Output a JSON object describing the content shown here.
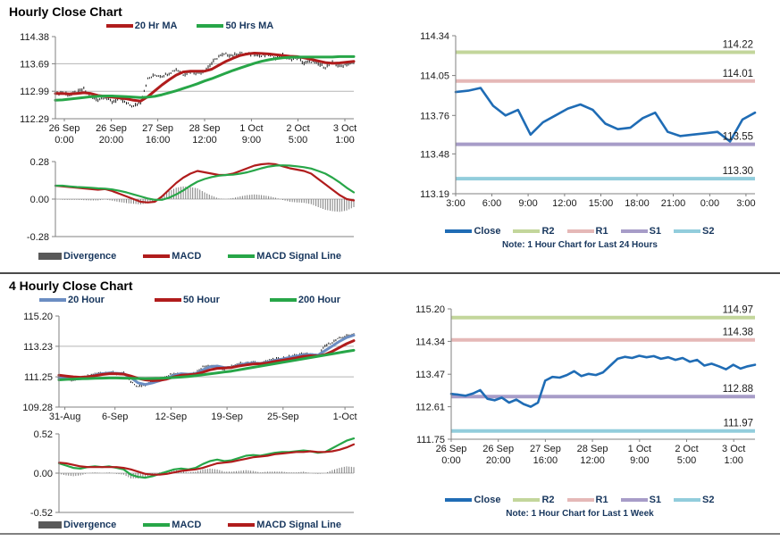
{
  "section1": {
    "title": "Hourly Close Chart",
    "price_legend": [
      {
        "label": "20 Hr MA",
        "color": "#b01c1c"
      },
      {
        "label": "50 Hrs MA",
        "color": "#27a648"
      }
    ],
    "macd_legend": [
      {
        "label": "Divergence",
        "color": "#595959"
      },
      {
        "label": "MACD",
        "color": "#b01c1c"
      },
      {
        "label": "MACD Signal Line",
        "color": "#27a648"
      }
    ],
    "pivot_legend": [
      {
        "label": "Close",
        "color": "#1f6cb5"
      },
      {
        "label": "R2",
        "color": "#c3d69b"
      },
      {
        "label": "R1",
        "color": "#e5b8b7"
      },
      {
        "label": "S1",
        "color": "#a79cc8"
      },
      {
        "label": "S2",
        "color": "#92cddc"
      }
    ],
    "note": "Note: 1 Hour Chart for Last 24 Hours"
  },
  "section2": {
    "title": "4 Hourly Close Chart",
    "price_legend": [
      {
        "label": "20 Hour",
        "color": "#6b8dc2"
      },
      {
        "label": "50 Hour",
        "color": "#b01c1c"
      },
      {
        "label": "200 Hour",
        "color": "#27a648"
      }
    ],
    "macd_legend": [
      {
        "label": "Divergence",
        "color": "#595959"
      },
      {
        "label": "MACD",
        "color": "#27a648"
      },
      {
        "label": "MACD Signal Line",
        "color": "#b01c1c"
      }
    ],
    "pivot_legend": [
      {
        "label": "Close",
        "color": "#1f6cb5"
      },
      {
        "label": "R2",
        "color": "#c3d69b"
      },
      {
        "label": "R1",
        "color": "#e5b8b7"
      },
      {
        "label": "S1",
        "color": "#a79cc8"
      },
      {
        "label": "S2",
        "color": "#92cddc"
      }
    ],
    "note": "Note: 1 Hour Chart for Last 1 Week"
  },
  "chart_data": [
    {
      "type": "line",
      "title": "Hourly Close Chart",
      "ylim": [
        112.29,
        114.38
      ],
      "yticks": [
        114.38,
        113.69,
        112.99,
        112.29
      ],
      "grid": [
        113.69,
        112.99
      ],
      "xticks": [
        "26 Sep\n0:00",
        "26 Sep\n20:00",
        "27 Sep\n16:00",
        "28 Sep\n12:00",
        "1 Oct\n9:00",
        "2 Oct\n5:00",
        "3 Oct\n1:00"
      ],
      "xtick_pos": [
        0.03,
        0.187,
        0.343,
        0.5,
        0.657,
        0.813,
        0.97
      ],
      "series": [
        {
          "name": "Close",
          "style": "hlc",
          "color": "#1a1a1a",
          "noise": 0.03,
          "bar": 0.05,
          "values": [
            112.93,
            112.95,
            112.9,
            112.96,
            113.05,
            112.82,
            112.78,
            112.85,
            112.72,
            112.8,
            112.68,
            112.6,
            112.72,
            113.3,
            113.4,
            113.38,
            113.45,
            113.55,
            113.42,
            113.48,
            113.45,
            113.52,
            113.7,
            113.88,
            113.93,
            113.9,
            113.96,
            113.92,
            113.95,
            113.88,
            113.92,
            113.85,
            113.9,
            113.8,
            113.85,
            113.7,
            113.75,
            113.68,
            113.6,
            113.72,
            113.62,
            113.68,
            113.72
          ]
        },
        {
          "name": "20 Hr MA",
          "style": "line",
          "color": "#b01c1c",
          "width": 3,
          "values": [
            112.93,
            112.93,
            112.92,
            112.93,
            112.95,
            112.93,
            112.88,
            112.86,
            112.84,
            112.82,
            112.8,
            112.76,
            112.74,
            112.85,
            113.0,
            113.15,
            113.28,
            113.4,
            113.48,
            113.5,
            113.5,
            113.5,
            113.55,
            113.65,
            113.75,
            113.83,
            113.9,
            113.94,
            113.96,
            113.95,
            113.94,
            113.92,
            113.9,
            113.88,
            113.87,
            113.84,
            113.8,
            113.76,
            113.72,
            113.7,
            113.71,
            113.73,
            113.75
          ]
        },
        {
          "name": "50 Hrs MA",
          "style": "line",
          "color": "#27a648",
          "width": 3,
          "values": [
            112.76,
            112.77,
            112.79,
            112.81,
            112.83,
            112.85,
            112.86,
            112.87,
            112.87,
            112.86,
            112.85,
            112.84,
            112.83,
            112.84,
            112.86,
            112.9,
            112.95,
            113.0,
            113.06,
            113.12,
            113.18,
            113.25,
            113.31,
            113.38,
            113.45,
            113.52,
            113.58,
            113.64,
            113.7,
            113.75,
            113.79,
            113.82,
            113.84,
            113.85,
            113.86,
            113.86,
            113.86,
            113.86,
            113.86,
            113.86,
            113.87,
            113.87,
            113.87
          ]
        }
      ]
    },
    {
      "type": "line",
      "title": "Hourly MACD",
      "ylim": [
        -0.28,
        0.28
      ],
      "yticks": [
        0.28,
        0.0,
        -0.28
      ],
      "grid": [
        0
      ],
      "series": [
        {
          "name": "Divergence",
          "style": "bars",
          "color": "#7f7f7f",
          "values": [
            0.0,
            -0.005,
            -0.005,
            -0.005,
            -0.008,
            -0.01,
            -0.01,
            -0.003,
            -0.012,
            -0.022,
            -0.03,
            -0.035,
            -0.04,
            -0.03,
            -0.015,
            0.025,
            0.06,
            0.085,
            0.095,
            0.09,
            0.08,
            0.05,
            0.025,
            0.005,
            0.0,
            0.008,
            0.02,
            0.03,
            0.035,
            0.03,
            0.022,
            0.01,
            -0.007,
            -0.02,
            -0.025,
            -0.028,
            -0.038,
            -0.06,
            -0.08,
            -0.09,
            -0.095,
            -0.085,
            -0.06
          ]
        },
        {
          "name": "MACD",
          "style": "line",
          "color": "#b01c1c",
          "width": 2.2,
          "values": [
            0.1,
            0.095,
            0.09,
            0.085,
            0.08,
            0.075,
            0.07,
            0.075,
            0.06,
            0.04,
            0.02,
            0.0,
            -0.02,
            -0.025,
            -0.02,
            0.02,
            0.07,
            0.12,
            0.16,
            0.19,
            0.21,
            0.2,
            0.19,
            0.18,
            0.18,
            0.19,
            0.21,
            0.23,
            0.25,
            0.26,
            0.265,
            0.26,
            0.245,
            0.23,
            0.22,
            0.21,
            0.19,
            0.15,
            0.11,
            0.07,
            0.03,
            0.0,
            -0.01
          ]
        },
        {
          "name": "MACD Signal Line",
          "style": "line",
          "color": "#27a648",
          "width": 2.2,
          "values": [
            0.1,
            0.1,
            0.095,
            0.09,
            0.088,
            0.085,
            0.08,
            0.078,
            0.072,
            0.062,
            0.05,
            0.035,
            0.02,
            0.005,
            -0.005,
            -0.005,
            0.01,
            0.035,
            0.065,
            0.1,
            0.13,
            0.15,
            0.165,
            0.175,
            0.18,
            0.182,
            0.19,
            0.2,
            0.215,
            0.23,
            0.243,
            0.25,
            0.252,
            0.25,
            0.245,
            0.238,
            0.228,
            0.21,
            0.19,
            0.16,
            0.125,
            0.085,
            0.05
          ]
        }
      ]
    },
    {
      "type": "line",
      "title": "1 Hour Chart for Last 24 Hours",
      "ylim": [
        113.19,
        114.34
      ],
      "yticks": [
        114.34,
        114.05,
        113.76,
        113.48,
        113.19
      ],
      "xticks": [
        "3:00",
        "6:00",
        "9:00",
        "12:00",
        "15:00",
        "18:00",
        "21:00",
        "0:00",
        "3:00"
      ],
      "xtick_pos": [
        0,
        0.121,
        0.242,
        0.364,
        0.485,
        0.606,
        0.727,
        0.849,
        0.97
      ],
      "levels": [
        {
          "name": "R2",
          "value": 114.22,
          "color": "#c3d69b"
        },
        {
          "name": "R1",
          "value": 114.01,
          "color": "#e5b8b7"
        },
        {
          "name": "S1",
          "value": 113.55,
          "color": "#a79cc8"
        },
        {
          "name": "S2",
          "value": 113.3,
          "color": "#92cddc"
        }
      ],
      "series": [
        {
          "name": "Close",
          "style": "line",
          "color": "#1f6cb5",
          "width": 2.6,
          "values": [
            113.93,
            113.94,
            113.96,
            113.83,
            113.76,
            113.8,
            113.62,
            113.71,
            113.76,
            113.81,
            113.84,
            113.8,
            113.7,
            113.66,
            113.67,
            113.74,
            113.78,
            113.64,
            113.61,
            113.62,
            113.63,
            113.64,
            113.57,
            113.73,
            113.78
          ]
        }
      ]
    },
    {
      "type": "line",
      "title": "4 Hourly Close Chart",
      "ylim": [
        109.28,
        115.2
      ],
      "yticks": [
        115.2,
        113.23,
        111.25,
        109.28
      ],
      "grid": [
        113.23,
        111.25
      ],
      "xticks": [
        "31-Aug",
        "6-Sep",
        "12-Sep",
        "19-Sep",
        "25-Sep",
        "1-Oct"
      ],
      "xtick_pos": [
        0.02,
        0.19,
        0.38,
        0.57,
        0.76,
        0.97
      ],
      "series": [
        {
          "name": "Close",
          "style": "hlc",
          "color": "#1a1a1a",
          "noise": 0.055,
          "bar": 0.09,
          "values": [
            111.2,
            111.1,
            111.05,
            111.15,
            111.3,
            111.45,
            111.5,
            111.55,
            111.45,
            111.5,
            110.9,
            110.6,
            110.75,
            111.0,
            111.1,
            111.3,
            111.5,
            111.45,
            111.4,
            111.55,
            111.9,
            112.0,
            111.9,
            111.7,
            111.95,
            112.1,
            112.15,
            112.2,
            112.1,
            112.3,
            112.4,
            112.45,
            112.55,
            112.65,
            112.75,
            112.7,
            112.6,
            113.25,
            113.5,
            113.75,
            113.9,
            114.05
          ]
        },
        {
          "name": "20 Hour",
          "style": "line",
          "color": "#6b8dc2",
          "width": 3,
          "values": [
            111.18,
            111.15,
            111.1,
            111.12,
            111.2,
            111.35,
            111.45,
            111.5,
            111.48,
            111.45,
            111.2,
            110.85,
            110.75,
            110.85,
            111.0,
            111.15,
            111.35,
            111.45,
            111.42,
            111.45,
            111.7,
            111.9,
            111.95,
            111.85,
            111.85,
            112.0,
            112.1,
            112.15,
            112.12,
            112.2,
            112.32,
            112.4,
            112.5,
            112.6,
            112.68,
            112.7,
            112.65,
            112.95,
            113.25,
            113.55,
            113.8,
            113.95
          ]
        },
        {
          "name": "50 Hour",
          "style": "line",
          "color": "#b01c1c",
          "width": 3,
          "values": [
            111.35,
            111.3,
            111.25,
            111.22,
            111.25,
            111.32,
            111.4,
            111.45,
            111.45,
            111.42,
            111.3,
            111.15,
            111.05,
            111.0,
            111.02,
            111.1,
            111.25,
            111.35,
            111.38,
            111.42,
            111.55,
            111.7,
            111.8,
            111.82,
            111.85,
            111.95,
            112.02,
            112.08,
            112.1,
            112.15,
            112.25,
            112.32,
            112.4,
            112.48,
            112.58,
            112.62,
            112.6,
            112.7,
            112.9,
            113.15,
            113.4,
            113.6
          ]
        },
        {
          "name": "200 Hour",
          "style": "line",
          "color": "#27a648",
          "width": 3,
          "values": [
            111.05,
            111.08,
            111.1,
            111.12,
            111.13,
            111.15,
            111.16,
            111.17,
            111.17,
            111.16,
            111.15,
            111.14,
            111.13,
            111.14,
            111.15,
            111.17,
            111.2,
            111.23,
            111.27,
            111.32,
            111.38,
            111.44,
            111.5,
            111.56,
            111.62,
            111.7,
            111.78,
            111.86,
            111.94,
            112.02,
            112.1,
            112.18,
            112.26,
            112.34,
            112.42,
            112.5,
            112.58,
            112.66,
            112.74,
            112.82,
            112.9,
            112.97
          ]
        }
      ]
    },
    {
      "type": "line",
      "title": "4 Hourly MACD",
      "ylim": [
        -0.52,
        0.52
      ],
      "yticks": [
        0.52,
        0.0,
        -0.52
      ],
      "grid": [
        0
      ],
      "series": [
        {
          "name": "Divergence",
          "style": "bars",
          "color": "#7f7f7f",
          "values": [
            -0.01,
            -0.03,
            -0.04,
            -0.03,
            0.0,
            0.01,
            0.0,
            0.01,
            -0.01,
            -0.02,
            -0.07,
            -0.07,
            -0.05,
            -0.02,
            0.01,
            0.03,
            0.04,
            0.03,
            0.01,
            0.02,
            0.05,
            0.06,
            0.05,
            0.02,
            0.02,
            0.03,
            0.04,
            0.03,
            0.01,
            0.02,
            0.02,
            0.02,
            0.01,
            0.01,
            0.02,
            0.0,
            -0.01,
            0.0,
            0.04,
            0.07,
            0.09,
            0.08
          ]
        },
        {
          "name": "MACD",
          "style": "line",
          "color": "#27a648",
          "width": 2.2,
          "values": [
            0.13,
            0.1,
            0.07,
            0.06,
            0.08,
            0.09,
            0.08,
            0.09,
            0.07,
            0.05,
            -0.02,
            -0.05,
            -0.06,
            -0.04,
            -0.01,
            0.02,
            0.05,
            0.06,
            0.05,
            0.07,
            0.12,
            0.16,
            0.18,
            0.16,
            0.17,
            0.2,
            0.23,
            0.24,
            0.23,
            0.25,
            0.27,
            0.28,
            0.28,
            0.29,
            0.3,
            0.29,
            0.27,
            0.28,
            0.33,
            0.38,
            0.43,
            0.46
          ]
        },
        {
          "name": "MACD Signal Line",
          "style": "line",
          "color": "#b01c1c",
          "width": 2.2,
          "values": [
            0.14,
            0.13,
            0.11,
            0.09,
            0.08,
            0.08,
            0.08,
            0.08,
            0.08,
            0.07,
            0.05,
            0.02,
            -0.01,
            -0.02,
            -0.02,
            -0.01,
            0.01,
            0.03,
            0.04,
            0.05,
            0.07,
            0.1,
            0.13,
            0.14,
            0.15,
            0.17,
            0.19,
            0.21,
            0.22,
            0.23,
            0.25,
            0.26,
            0.27,
            0.28,
            0.28,
            0.29,
            0.28,
            0.28,
            0.29,
            0.31,
            0.34,
            0.38
          ]
        }
      ]
    },
    {
      "type": "line",
      "title": "1 Hour Chart for Last 1 Week",
      "ylim": [
        111.75,
        115.2
      ],
      "yticks": [
        115.2,
        114.34,
        113.47,
        112.61,
        111.75
      ],
      "xticks": [
        "26 Sep\n0:00",
        "26 Sep\n20:00",
        "27 Sep\n16:00",
        "28 Sep\n12:00",
        "1 Oct\n9:00",
        "2 Oct\n5:00",
        "3 Oct\n1:00"
      ],
      "xtick_pos": [
        0,
        0.155,
        0.31,
        0.465,
        0.62,
        0.775,
        0.93
      ],
      "levels": [
        {
          "name": "R2",
          "value": 114.97,
          "color": "#c3d69b"
        },
        {
          "name": "R1",
          "value": 114.38,
          "color": "#e5b8b7"
        },
        {
          "name": "S1",
          "value": 112.88,
          "color": "#a79cc8"
        },
        {
          "name": "S2",
          "value": 111.97,
          "color": "#92cddc"
        }
      ],
      "series": [
        {
          "name": "Close",
          "style": "line",
          "color": "#1f6cb5",
          "width": 2.6,
          "values": [
            112.95,
            112.93,
            112.9,
            112.96,
            113.05,
            112.82,
            112.78,
            112.85,
            112.72,
            112.8,
            112.68,
            112.61,
            112.72,
            113.3,
            113.4,
            113.38,
            113.45,
            113.55,
            113.42,
            113.48,
            113.45,
            113.52,
            113.7,
            113.88,
            113.93,
            113.9,
            113.96,
            113.92,
            113.95,
            113.88,
            113.92,
            113.85,
            113.9,
            113.8,
            113.85,
            113.7,
            113.75,
            113.68,
            113.6,
            113.72,
            113.62,
            113.68,
            113.72
          ]
        }
      ]
    }
  ]
}
